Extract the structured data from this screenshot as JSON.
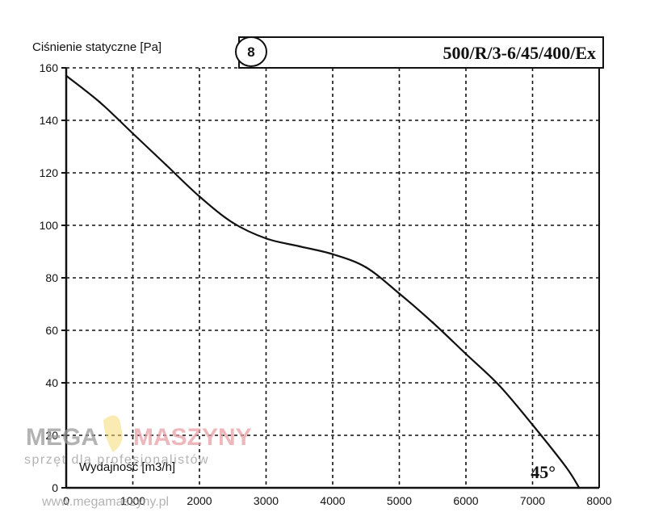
{
  "chart_data": {
    "type": "line",
    "title": "500/R/3-6/45/400/Ex",
    "badge": "8",
    "ylabel": "Ciśnienie statyczne [Pa]",
    "xlabel": "Wydajność [m3/h]",
    "angle_label": "45°",
    "xlim": [
      0,
      8000
    ],
    "ylim": [
      0,
      160
    ],
    "x_ticks": [
      "0",
      "1000",
      "2000",
      "3000",
      "4000",
      "5000",
      "6000",
      "7000",
      "8000"
    ],
    "y_ticks": [
      "0",
      "20",
      "40",
      "60",
      "80",
      "100",
      "120",
      "140",
      "160"
    ],
    "grid": true,
    "series": [
      {
        "x": [
          0,
          500,
          1000,
          1500,
          2000,
          2500,
          3000,
          3500,
          4000,
          4500,
          5000,
          5500,
          6000,
          6500,
          7000,
          7500,
          7700
        ],
        "y": [
          157,
          147,
          135,
          123,
          111,
          101,
          95,
          92,
          89,
          84,
          74,
          63,
          51,
          39,
          24,
          8,
          0
        ]
      }
    ]
  },
  "watermark": {
    "brand_left": "MEGA",
    "brand_right": "MASZYNY",
    "tagline": "sprzęt dla profesjonalistów",
    "url": "www.megamaszyny.pl"
  }
}
